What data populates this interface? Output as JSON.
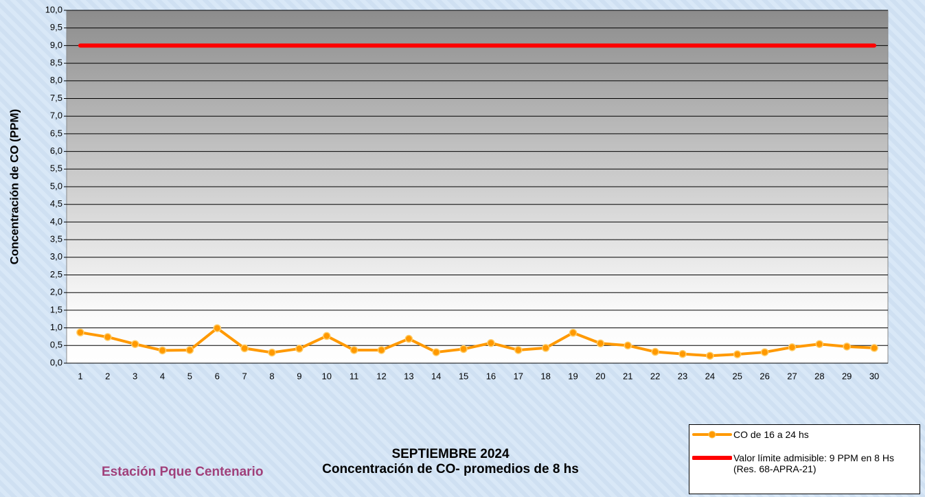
{
  "chart_data": {
    "type": "line",
    "title": "SEPTIEMBRE 2024",
    "subtitle": "Concentración de CO- promedios de 8 hs",
    "station": "Estación Pque Centenario",
    "y_label": "Concentración de CO (PPM)",
    "categories": [
      "1",
      "2",
      "3",
      "4",
      "5",
      "6",
      "7",
      "8",
      "9",
      "10",
      "11",
      "12",
      "13",
      "14",
      "15",
      "16",
      "17",
      "18",
      "19",
      "20",
      "21",
      "22",
      "23",
      "24",
      "25",
      "26",
      "27",
      "28",
      "29",
      "30"
    ],
    "series": [
      {
        "name": "CO de 16 a 24 hs",
        "color": "#ff9900",
        "marker": true,
        "values": [
          0.87,
          0.74,
          0.54,
          0.36,
          0.37,
          0.99,
          0.42,
          0.3,
          0.41,
          0.77,
          0.37,
          0.37,
          0.69,
          0.31,
          0.4,
          0.57,
          0.37,
          0.43,
          0.86,
          0.56,
          0.5,
          0.32,
          0.26,
          0.21,
          0.25,
          0.31,
          0.45,
          0.54,
          0.47,
          0.43
        ]
      },
      {
        "name": "Valor límite admisible: 9 PPM en 8 Hs (Res. 68-APRA-21)",
        "color": "#ff0000",
        "marker": false,
        "values": [
          9,
          9,
          9,
          9,
          9,
          9,
          9,
          9,
          9,
          9,
          9,
          9,
          9,
          9,
          9,
          9,
          9,
          9,
          9,
          9,
          9,
          9,
          9,
          9,
          9,
          9,
          9,
          9,
          9,
          9
        ]
      }
    ],
    "ylim": [
      0,
      10
    ],
    "yticks": [
      {
        "value": 0,
        "label": "0,0"
      },
      {
        "value": 0.5,
        "label": "0,5"
      },
      {
        "value": 1,
        "label": "1,0"
      },
      {
        "value": 1.5,
        "label": "1,5"
      },
      {
        "value": 2,
        "label": "2,0"
      },
      {
        "value": 2.5,
        "label": "2,5"
      },
      {
        "value": 3,
        "label": "3,0"
      },
      {
        "value": 3.5,
        "label": "3,5"
      },
      {
        "value": 4,
        "label": "4,0"
      },
      {
        "value": 4.5,
        "label": "4,5"
      },
      {
        "value": 5,
        "label": "5,0"
      },
      {
        "value": 5.5,
        "label": "5,5"
      },
      {
        "value": 6,
        "label": "6,0"
      },
      {
        "value": 6.5,
        "label": "6,5"
      },
      {
        "value": 7,
        "label": "7,0"
      },
      {
        "value": 7.5,
        "label": "7,5"
      },
      {
        "value": 8,
        "label": "8,0"
      },
      {
        "value": 8.5,
        "label": "8,5"
      },
      {
        "value": 9,
        "label": "9,0"
      },
      {
        "value": 9.5,
        "label": "9,5"
      },
      {
        "value": 10,
        "label": "10,0"
      }
    ],
    "grid": true
  }
}
